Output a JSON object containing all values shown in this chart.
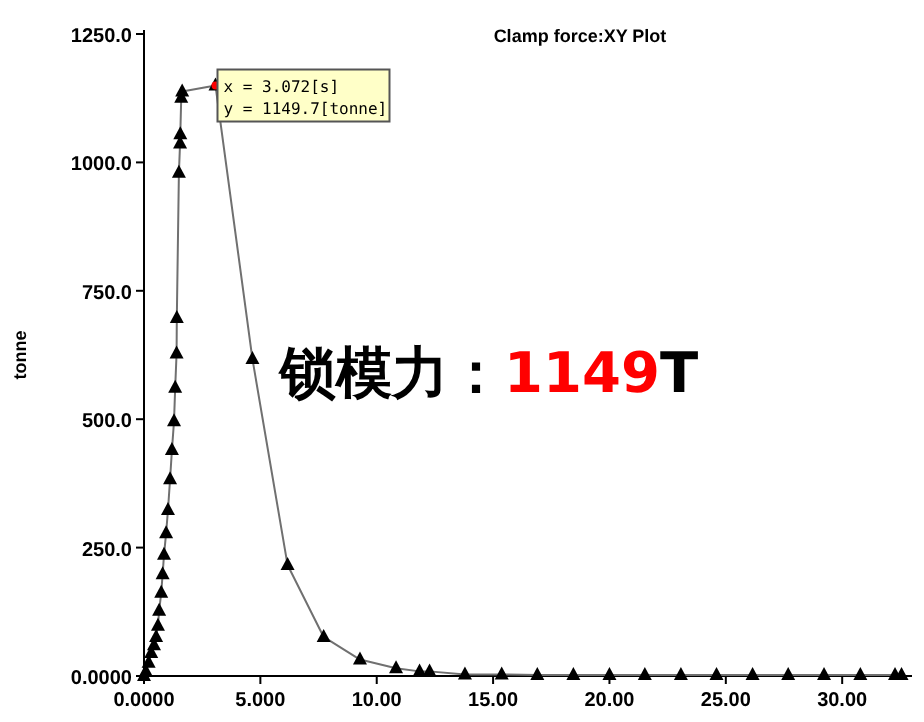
{
  "chart_data": {
    "type": "line",
    "title": "Clamp force:XY Plot",
    "ylabel": "tonne",
    "x": [
      0,
      0.08,
      0.2,
      0.31,
      0.43,
      0.52,
      0.6,
      0.65,
      0.74,
      0.8,
      0.86,
      0.95,
      1.03,
      1.12,
      1.2,
      1.29,
      1.34,
      1.4,
      1.41,
      1.5,
      1.55,
      1.56,
      1.6,
      1.64,
      3.072,
      4.66,
      6.17,
      7.72,
      9.28,
      10.83,
      11.84,
      12.27,
      13.79,
      15.37,
      16.9,
      18.45,
      20.0,
      21.52,
      23.07,
      24.6,
      26.15,
      27.68,
      29.22,
      30.78,
      32.27,
      32.55
    ],
    "series": [
      {
        "color": "#707070",
        "values": [
          0,
          9,
          26,
          45,
          60,
          76,
          98,
          127,
          162,
          198,
          236,
          278,
          323,
          383,
          440,
          496,
          561,
          628,
          697,
          980,
          1037,
          1055,
          1126,
          1138,
          1149.7,
          617,
          216,
          76,
          32,
          15,
          9,
          9,
          3,
          3,
          2,
          2,
          2,
          2,
          2,
          2,
          2,
          2,
          2,
          2,
          2,
          2
        ]
      }
    ],
    "xlim": [
      0,
      33
    ],
    "xticks": [
      {
        "value": 0,
        "label": "0.0000"
      },
      {
        "value": 5,
        "label": "5.000"
      },
      {
        "value": 10,
        "label": "10.00"
      },
      {
        "value": 15,
        "label": "15.00"
      },
      {
        "value": 20,
        "label": "20.00"
      },
      {
        "value": 25,
        "label": "25.00"
      },
      {
        "value": 30,
        "label": "30.00"
      }
    ],
    "ylim": [
      0,
      1250
    ],
    "yticks": [
      {
        "value": 0,
        "label": "0.0000"
      },
      {
        "value": 250,
        "label": "250.0"
      },
      {
        "value": 500,
        "label": "500.0"
      },
      {
        "value": 750,
        "label": "750.0"
      },
      {
        "value": 1000,
        "label": "1000.0"
      },
      {
        "value": 1250,
        "label": "1250.0"
      }
    ],
    "marker": "triangle",
    "line_style": "solid",
    "annotations": [
      {
        "text": "x = 3.072[s]\ny = 1149.7[tonne]",
        "x": 3.072,
        "y": 1149.7
      },
      "锁模力：1149T"
    ]
  }
}
